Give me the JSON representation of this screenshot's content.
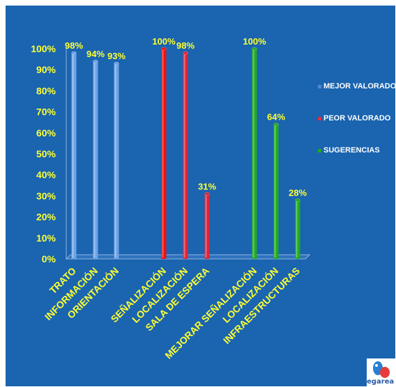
{
  "chart_data": {
    "type": "bar",
    "title": "",
    "xlabel": "",
    "ylabel": "",
    "ylim": [
      0,
      100
    ],
    "yticks": [
      "0%",
      "10%",
      "20%",
      "30%",
      "40%",
      "50%",
      "60%",
      "70%",
      "80%",
      "90%",
      "100%"
    ],
    "grid": false,
    "legend_position": "right",
    "groups": [
      {
        "name": "MEJOR VALORADO",
        "color": "#6fa3e6",
        "categories": [
          "TRATO",
          "INFORMACIÓN",
          "ORIENTACIÓN"
        ],
        "values": [
          98,
          94,
          93
        ],
        "labels": [
          "98%",
          "94%",
          "93%"
        ]
      },
      {
        "name": "PEOR VALORADO",
        "color": null,
        "categories": [
          "SEÑALIZACIÓN",
          "LOCALIZACIÓN",
          "SALA DE ESPERA"
        ],
        "values": [
          100,
          98,
          31
        ],
        "labels": [
          "100%",
          "98%",
          "31%"
        ]
      },
      {
        "name": "SUGERENCIAS",
        "color": "#22aa22",
        "categories": [
          "MEJORAR SEÑALIZACIÓN",
          "LOCALIZACIÓN",
          "INFRAESTRUCTURAS"
        ],
        "values": [
          100,
          64,
          28
        ],
        "labels": [
          "100%",
          "64%",
          "28%"
        ]
      }
    ]
  },
  "legend": [
    {
      "label": "MEJOR VALORADO",
      "color": "#4f86d6"
    },
    {
      "label": "PEOR VALORADO",
      "color": "#e03040"
    },
    {
      "label": "SUGERENCIAS",
      "color": "#22aa22"
    }
  ],
  "bar_colors": [
    "#6fa3e6",
    "#6fa3e6",
    "#6fa3e6",
    "#ee1111",
    "#e0243a",
    "#e0243a",
    "#22aa22",
    "#22aa22",
    "#22aa22"
  ],
  "logo": {
    "text": "egarea",
    "icon": "logo-icon"
  }
}
